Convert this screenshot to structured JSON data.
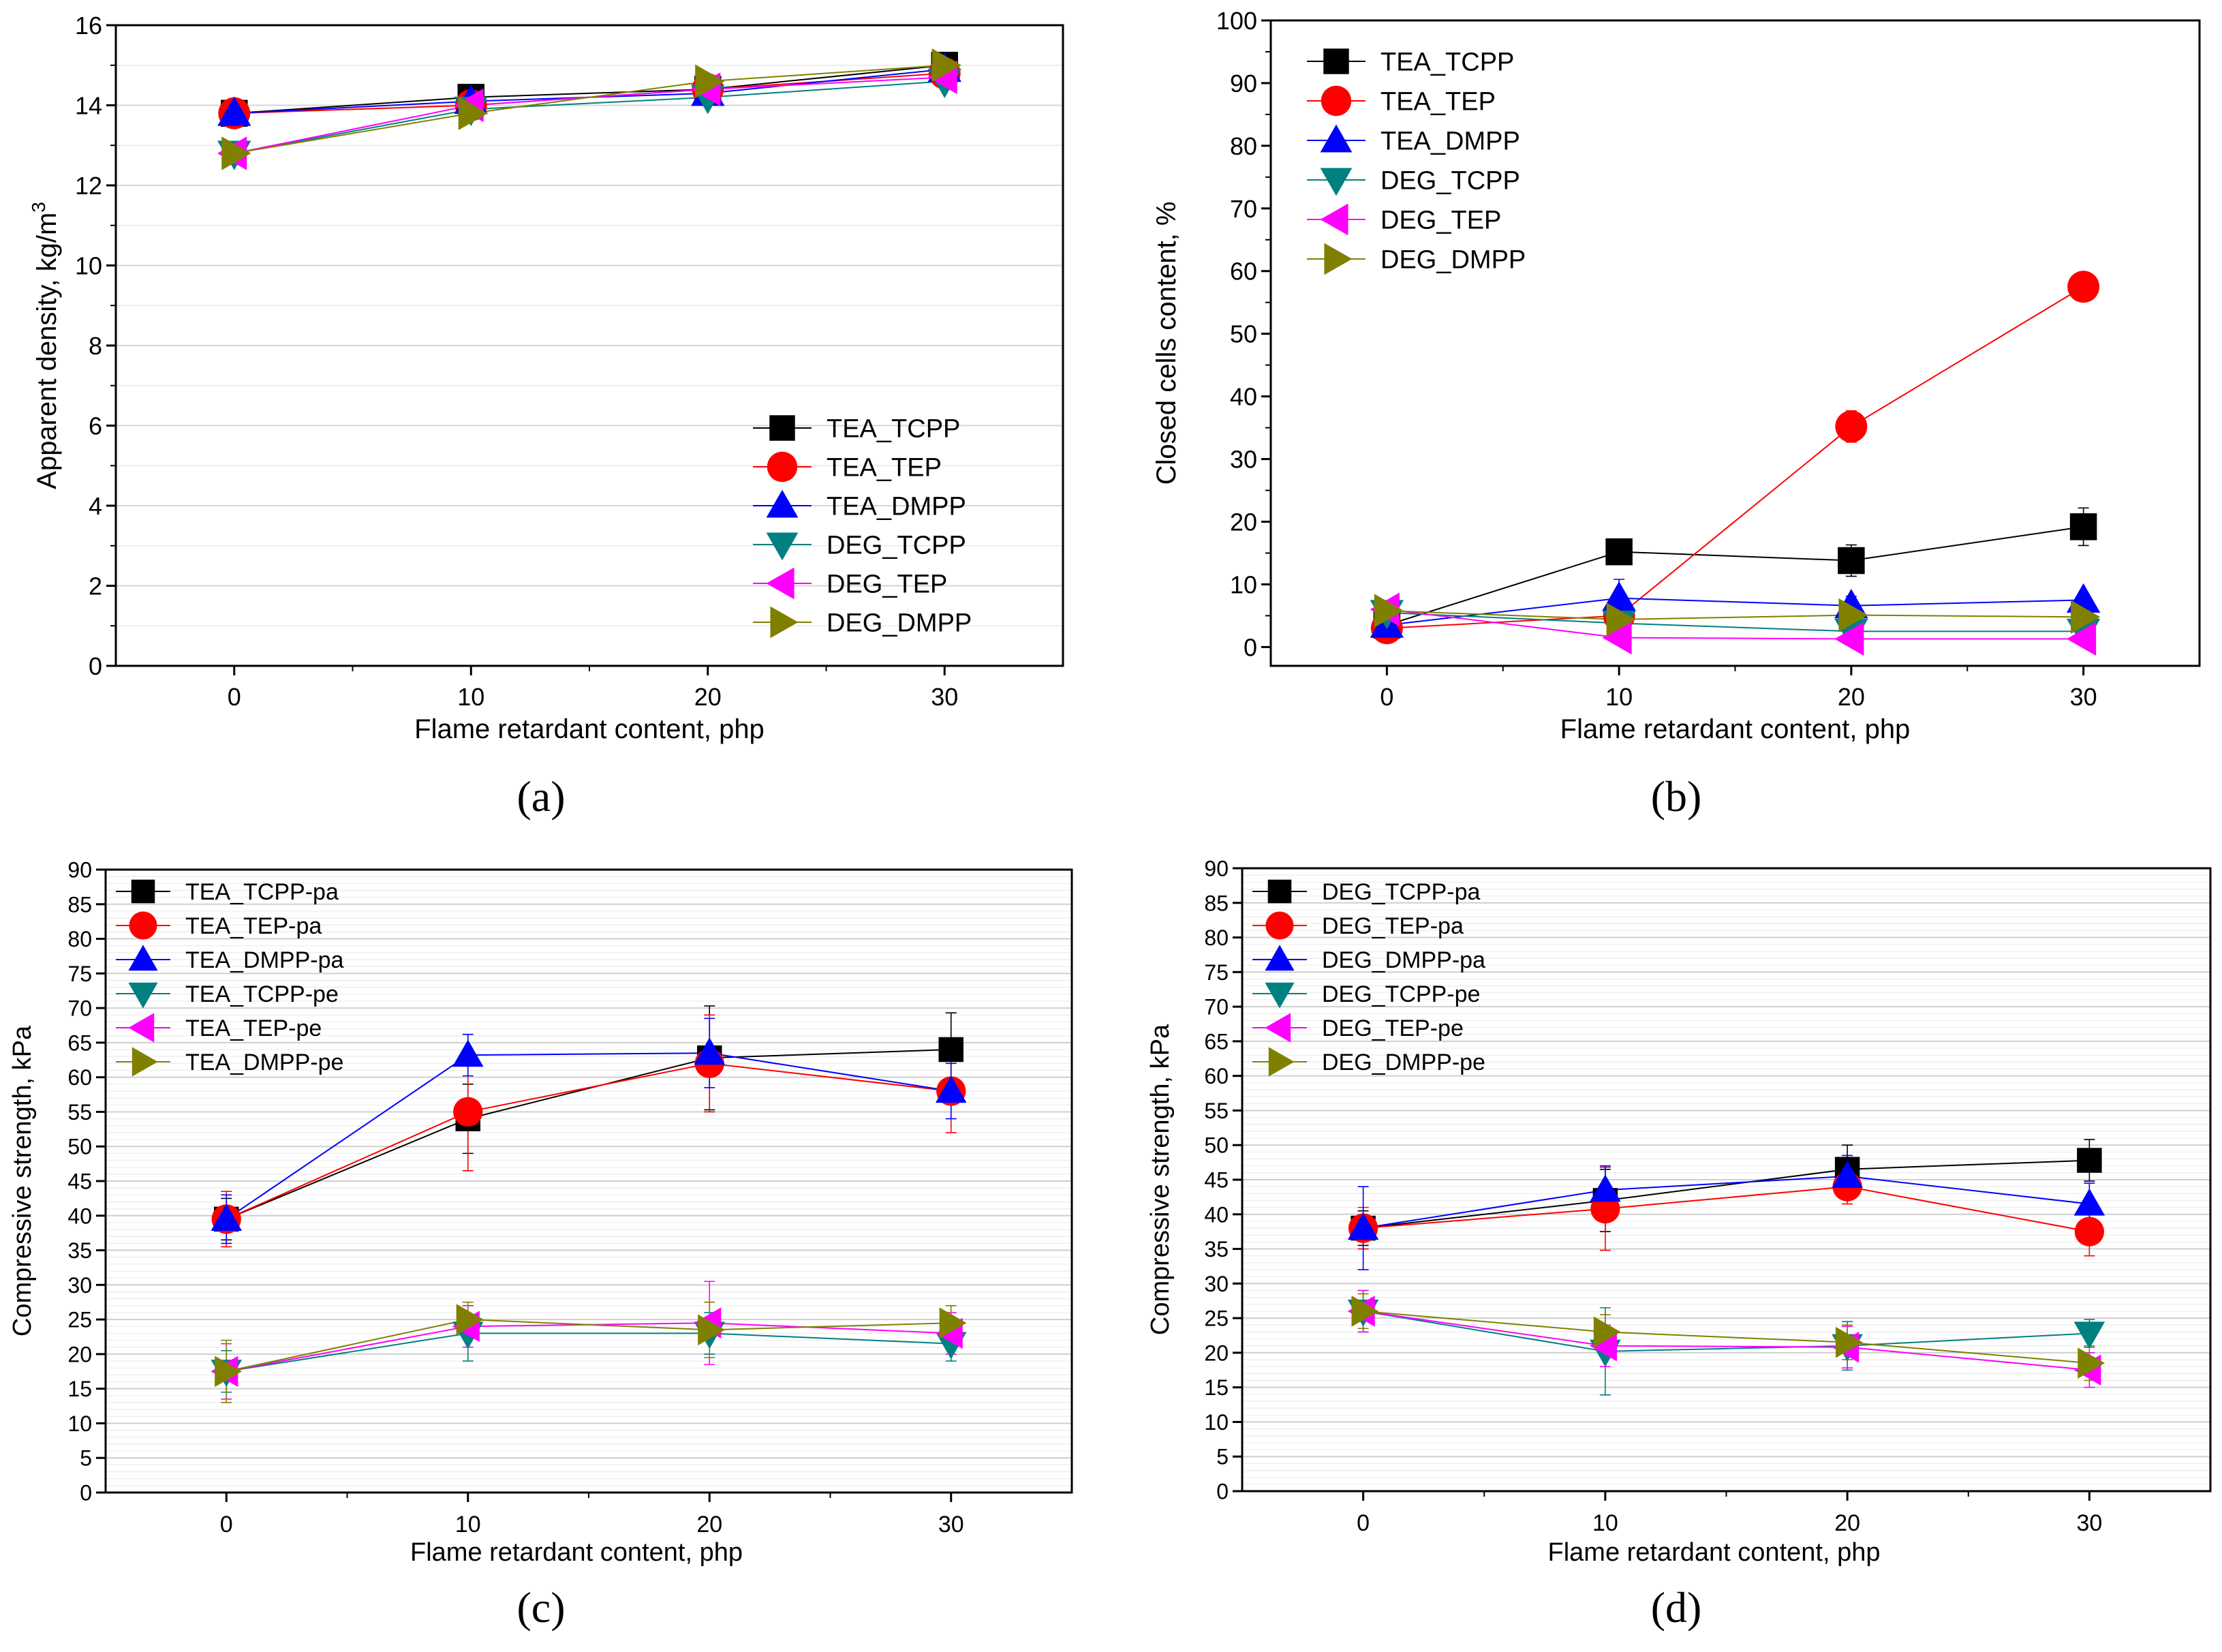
{
  "charts": [
    {
      "id": "a",
      "panel_label": "(a)",
      "type": "line",
      "title": "",
      "xlabel": "Flame retardant content, php",
      "ylabel": "Apparent density, kg/m",
      "ylabel_sup": "3",
      "x": [
        0,
        10,
        20,
        30
      ],
      "xticks": [
        "0",
        "10",
        "20",
        "30"
      ],
      "xlim": [
        -5,
        35
      ],
      "ylim": [
        0,
        16
      ],
      "yticks": [
        0,
        2,
        4,
        6,
        8,
        10,
        12,
        14,
        16
      ],
      "grid": "horizontal",
      "legend_position": "bottom-right",
      "series": [
        {
          "name": "TEA_TCPP",
          "marker": "square",
          "color": "#000000",
          "values": [
            13.8,
            14.2,
            14.4,
            15.0
          ]
        },
        {
          "name": "TEA_TEP",
          "marker": "circle",
          "color": "#ff0000",
          "values": [
            13.8,
            14.0,
            14.4,
            14.8
          ]
        },
        {
          "name": "TEA_DMPP",
          "marker": "triangle-up",
          "color": "#0000ff",
          "values": [
            13.8,
            14.1,
            14.3,
            14.9
          ]
        },
        {
          "name": "DEG_TCPP",
          "marker": "triangle-down",
          "color": "#008080",
          "values": [
            12.8,
            13.9,
            14.2,
            14.6
          ]
        },
        {
          "name": "DEG_TEP",
          "marker": "triangle-left",
          "color": "#ff00ff",
          "values": [
            12.8,
            14.0,
            14.4,
            14.7
          ]
        },
        {
          "name": "DEG_DMPP",
          "marker": "triangle-right",
          "color": "#808000",
          "values": [
            12.8,
            13.8,
            14.6,
            15.0
          ]
        }
      ]
    },
    {
      "id": "b",
      "panel_label": "(b)",
      "type": "line",
      "title": "",
      "xlabel": "Flame retardant content, php",
      "ylabel": "Closed cells content, %",
      "x": [
        0,
        10,
        20,
        30
      ],
      "xticks": [
        "0",
        "10",
        "20",
        "30"
      ],
      "xlim": [
        -5,
        35
      ],
      "ylim": [
        -3,
        100
      ],
      "yticks": [
        0,
        10,
        20,
        30,
        40,
        50,
        60,
        70,
        80,
        90,
        100
      ],
      "grid": "none",
      "legend_position": "top-left",
      "series": [
        {
          "name": "TEA_TCPP",
          "marker": "square",
          "color": "#000000",
          "values": [
            3.5,
            15.2,
            13.8,
            19.2
          ],
          "errors": [
            1.0,
            1.5,
            2.5,
            3.0
          ]
        },
        {
          "name": "TEA_TEP",
          "marker": "circle",
          "color": "#ff0000",
          "values": [
            3.0,
            5.0,
            35.2,
            57.5
          ],
          "errors": [
            1.0,
            1.5,
            2.5,
            0
          ]
        },
        {
          "name": "TEA_DMPP",
          "marker": "triangle-up",
          "color": "#0000ff",
          "values": [
            3.5,
            7.8,
            6.6,
            7.5
          ],
          "errors": [
            1.0,
            3.0,
            1.5,
            1.0
          ]
        },
        {
          "name": "DEG_TCPP",
          "marker": "triangle-down",
          "color": "#008080",
          "values": [
            5.5,
            3.8,
            2.5,
            2.5
          ],
          "errors": [
            1.0,
            1.0,
            0.5,
            0.5
          ]
        },
        {
          "name": "DEG_TEP",
          "marker": "triangle-left",
          "color": "#ff00ff",
          "values": [
            6.0,
            1.5,
            1.3,
            1.3
          ],
          "errors": [
            1.0,
            0.5,
            0.5,
            0.5
          ]
        },
        {
          "name": "DEG_DMPP",
          "marker": "triangle-right",
          "color": "#808000",
          "values": [
            5.8,
            4.4,
            5.1,
            4.8
          ],
          "errors": [
            1.0,
            1.0,
            0.8,
            0.8
          ]
        }
      ]
    },
    {
      "id": "c",
      "panel_label": "(c)",
      "type": "line",
      "title": "",
      "xlabel": "Flame retardant content, php",
      "ylabel": "Compressive strength, kPa",
      "x": [
        0,
        10,
        20,
        30
      ],
      "xticks": [
        "0",
        "10",
        "20",
        "30"
      ],
      "xlim": [
        -5,
        35
      ],
      "ylim": [
        0,
        90
      ],
      "yticks": [
        0,
        5,
        10,
        15,
        20,
        25,
        30,
        35,
        40,
        45,
        50,
        55,
        60,
        65,
        70,
        75,
        80,
        85,
        90
      ],
      "grid": "horizontal",
      "legend_position": "top-left",
      "series": [
        {
          "name": "TEA_TCPP-pa",
          "marker": "square",
          "color": "#000000",
          "values": [
            39.5,
            54.0,
            62.8,
            64.0
          ],
          "errors": [
            3.0,
            5.0,
            7.5,
            5.3
          ]
        },
        {
          "name": "TEA_TEP-pa",
          "marker": "circle",
          "color": "#ff0000",
          "values": [
            39.5,
            55.0,
            62.0,
            58.0
          ],
          "errors": [
            4.0,
            8.5,
            7.0,
            6.0
          ]
        },
        {
          "name": "TEA_DMPP-pa",
          "marker": "triangle-up",
          "color": "#0000ff",
          "values": [
            39.5,
            63.2,
            63.5,
            58.0
          ],
          "errors": [
            3.5,
            3.0,
            5.0,
            4.0
          ]
        },
        {
          "name": "TEA_TCPP-pe",
          "marker": "triangle-down",
          "color": "#008080",
          "values": [
            17.5,
            23.0,
            23.0,
            21.5
          ],
          "errors": [
            3.0,
            4.0,
            3.0,
            2.5
          ]
        },
        {
          "name": "TEA_TEP-pe",
          "marker": "triangle-left",
          "color": "#ff00ff",
          "values": [
            17.5,
            24.0,
            24.5,
            23.0
          ],
          "errors": [
            4.0,
            3.0,
            6.0,
            3.0
          ]
        },
        {
          "name": "TEA_DMPP-pe",
          "marker": "triangle-right",
          "color": "#808000",
          "values": [
            17.5,
            25.0,
            23.5,
            24.5
          ],
          "errors": [
            4.5,
            2.5,
            4.0,
            2.5
          ]
        }
      ]
    },
    {
      "id": "d",
      "panel_label": "(d)",
      "type": "line",
      "title": "",
      "xlabel": "Flame retardant content, php",
      "ylabel": "Compressive strength, kPa",
      "x": [
        0,
        10,
        20,
        30
      ],
      "xticks": [
        "0",
        "10",
        "20",
        "30"
      ],
      "xlim": [
        -5,
        35
      ],
      "ylim": [
        0,
        90
      ],
      "yticks": [
        0,
        5,
        10,
        15,
        20,
        25,
        30,
        35,
        40,
        45,
        50,
        55,
        60,
        65,
        70,
        75,
        80,
        85,
        90
      ],
      "grid": "horizontal",
      "legend_position": "top-left",
      "series": [
        {
          "name": "DEG_TCPP-pa",
          "marker": "square",
          "color": "#000000",
          "values": [
            38.0,
            42.0,
            46.5,
            47.8
          ],
          "errors": [
            2.5,
            4.5,
            3.5,
            3.0
          ]
        },
        {
          "name": "DEG_TEP-pa",
          "marker": "circle",
          "color": "#ff0000",
          "values": [
            38.0,
            40.8,
            44.0,
            37.5
          ],
          "errors": [
            3.0,
            6.0,
            2.5,
            3.5
          ]
        },
        {
          "name": "DEG_DMPP-pa",
          "marker": "triangle-up",
          "color": "#0000ff",
          "values": [
            38.0,
            43.5,
            45.5,
            41.5
          ],
          "errors": [
            6.0,
            3.5,
            3.0,
            3.0
          ]
        },
        {
          "name": "DEG_TCPP-pe",
          "marker": "triangle-down",
          "color": "#008080",
          "values": [
            26.0,
            20.2,
            21.0,
            22.8
          ],
          "errors": [
            3.0,
            6.3,
            3.5,
            2.0
          ]
        },
        {
          "name": "DEG_TEP-pe",
          "marker": "triangle-left",
          "color": "#ff00ff",
          "values": [
            26.0,
            21.0,
            20.8,
            17.5
          ],
          "errors": [
            3.0,
            3.0,
            3.0,
            2.5
          ]
        },
        {
          "name": "DEG_DMPP-pe",
          "marker": "triangle-right",
          "color": "#808000",
          "values": [
            26.0,
            23.0,
            21.5,
            18.5
          ],
          "errors": [
            2.5,
            2.5,
            2.5,
            2.5
          ]
        }
      ]
    }
  ]
}
